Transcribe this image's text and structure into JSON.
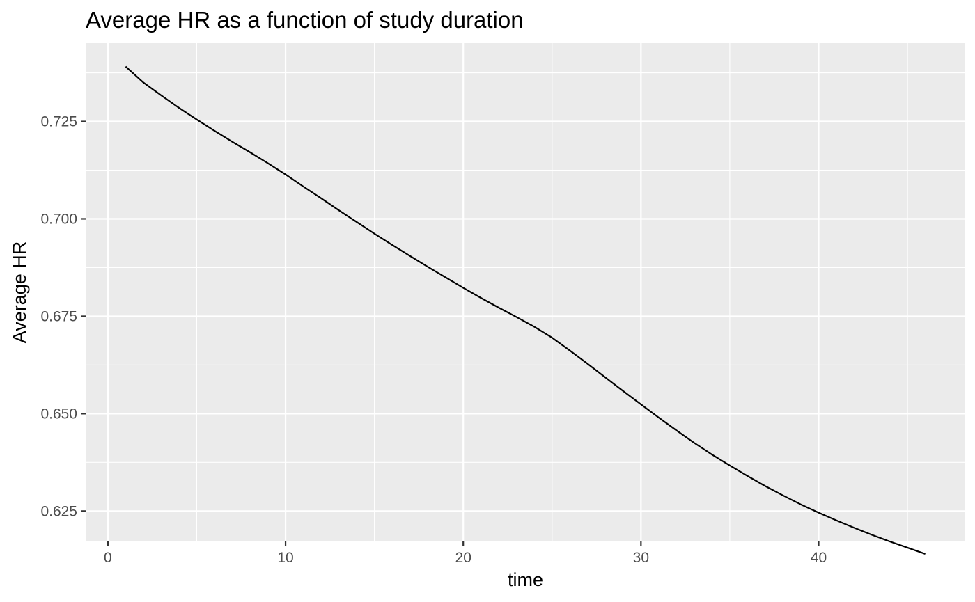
{
  "chart_data": {
    "type": "line",
    "title": "Average HR as a function of study duration",
    "xlabel": "time",
    "ylabel": "Average HR",
    "xlim": [
      -1.25,
      48.25
    ],
    "ylim": [
      0.6172,
      0.7451
    ],
    "x_ticks": [
      0,
      10,
      20,
      30,
      40
    ],
    "x_tick_labels": [
      "0",
      "10",
      "20",
      "30",
      "40"
    ],
    "x_minor_ticks": [
      5,
      15,
      25,
      35,
      45
    ],
    "y_ticks": [
      0.625,
      0.65,
      0.675,
      0.7,
      0.725
    ],
    "y_tick_labels": [
      "0.625",
      "0.650",
      "0.675",
      "0.700",
      "0.725"
    ],
    "y_minor_ticks": [
      0.6375,
      0.6625,
      0.6875,
      0.7125,
      0.7375
    ],
    "grid": true,
    "legend": "none",
    "colors": {
      "panel_background": "#ebebeb",
      "grid_line": "#ffffff",
      "line": "#000000",
      "tick_mark": "#333333"
    },
    "series": [
      {
        "x": [
          1,
          2,
          3,
          4,
          5,
          6,
          7,
          8,
          9,
          10,
          11,
          12,
          13,
          14,
          15,
          16,
          17,
          18,
          19,
          20,
          21,
          22,
          23,
          24,
          25,
          26,
          27,
          28,
          29,
          30,
          31,
          32,
          33,
          34,
          35,
          36,
          37,
          38,
          39,
          40,
          41,
          42,
          43,
          44,
          45,
          46
        ],
        "values": [
          0.7391,
          0.735,
          0.7317,
          0.7285,
          0.7255,
          0.7226,
          0.7198,
          0.7171,
          0.7143,
          0.7114,
          0.7083,
          0.7053,
          0.7022,
          0.6992,
          0.6962,
          0.6933,
          0.6905,
          0.6877,
          0.685,
          0.6823,
          0.6797,
          0.6772,
          0.6748,
          0.6723,
          0.6695,
          0.6662,
          0.6628,
          0.6593,
          0.6558,
          0.6524,
          0.649,
          0.6457,
          0.6425,
          0.6395,
          0.6367,
          0.634,
          0.6314,
          0.629,
          0.6267,
          0.6246,
          0.6226,
          0.6207,
          0.6189,
          0.6172,
          0.6156,
          0.614
        ]
      }
    ]
  }
}
